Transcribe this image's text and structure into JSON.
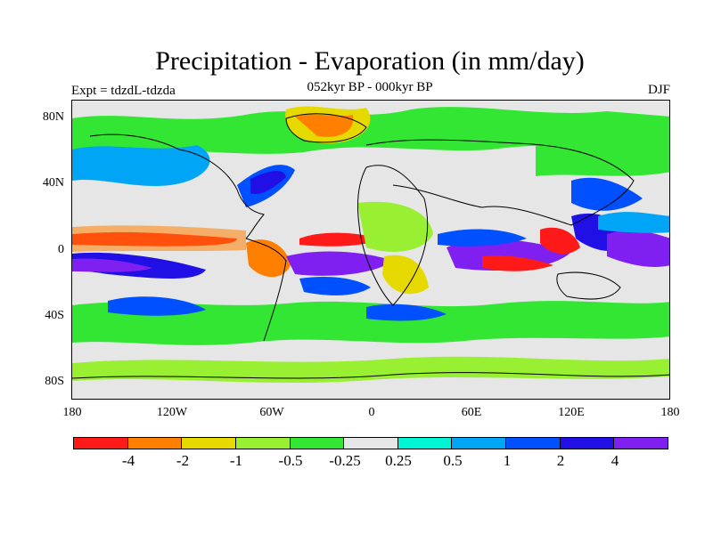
{
  "title": "Precipitation - Evaporation (in mm/day)",
  "subtitle": "052kyr BP - 000kyr BP",
  "experiment": "Expt = tdzdL-tdzda",
  "season": "DJF",
  "y_axis_labels": [
    "80N",
    "40N",
    "0",
    "40S",
    "80S"
  ],
  "x_axis_labels": [
    "180",
    "120W",
    "60W",
    "0",
    "60E",
    "120E",
    "180"
  ],
  "colorbar": {
    "colors": [
      "#ff1a1a",
      "#ff8000",
      "#e6d900",
      "#99f033",
      "#33e633",
      "#e6e6e6",
      "#00f5d5",
      "#00a6f5",
      "#0050ff",
      "#2010e6",
      "#8020f0"
    ],
    "labels": [
      "-4",
      "-2",
      "-1",
      "-0.5",
      "-0.25",
      "0.25",
      "0.5",
      "1",
      "2",
      "4"
    ]
  }
}
